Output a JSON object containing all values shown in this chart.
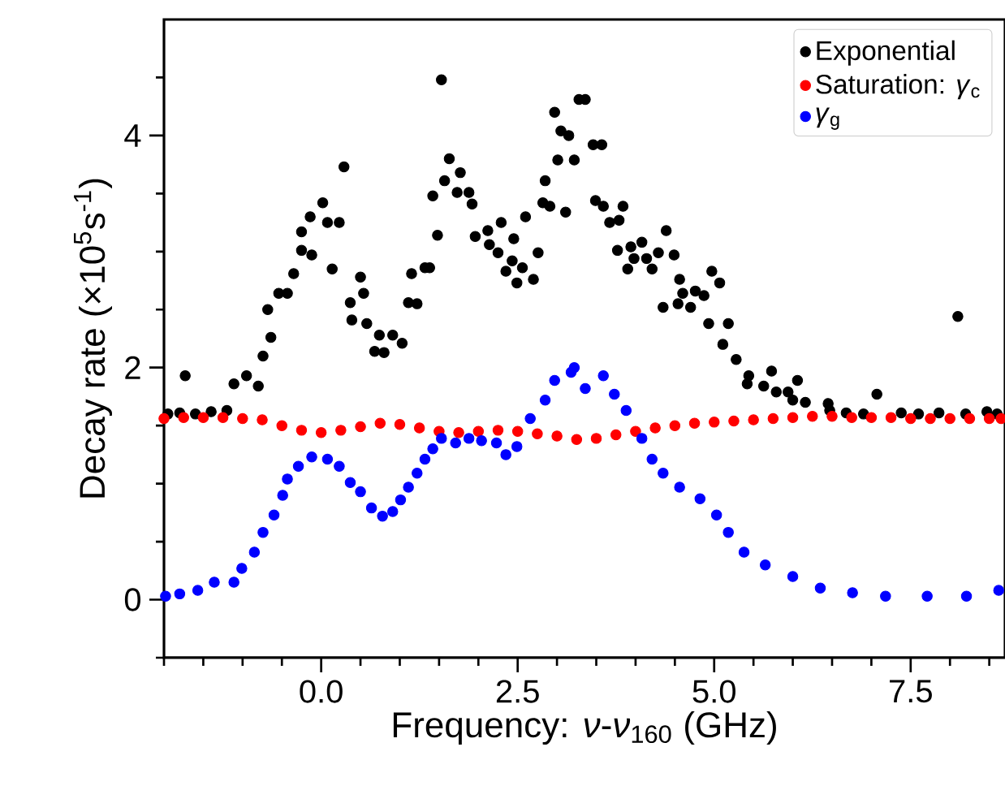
{
  "chart_data": {
    "type": "scatter",
    "xlabel": "Frequency:  *ν*-*ν*$_{160}$ (GHz)",
    "ylabel": "Decay rate (×10$^{5}$s$^{-1}$)",
    "xlim": [
      -2.0,
      8.7
    ],
    "ylim": [
      -0.5,
      5.0
    ],
    "xticks": [
      {
        "value": -2.0,
        "label": null
      },
      {
        "value": -1.5,
        "label": null
      },
      {
        "value": -1.0,
        "label": null
      },
      {
        "value": -0.5,
        "label": null
      },
      {
        "value": 0,
        "label": "0.0"
      },
      {
        "value": 0.5,
        "label": null
      },
      {
        "value": 1.0,
        "label": null
      },
      {
        "value": 1.5,
        "label": null
      },
      {
        "value": 2.0,
        "label": null
      },
      {
        "value": 2.5,
        "label": "2.5"
      },
      {
        "value": 3.0,
        "label": null
      },
      {
        "value": 3.5,
        "label": null
      },
      {
        "value": 4.0,
        "label": null
      },
      {
        "value": 4.5,
        "label": null
      },
      {
        "value": 5.0,
        "label": "5.0"
      },
      {
        "value": 5.5,
        "label": null
      },
      {
        "value": 6.0,
        "label": null
      },
      {
        "value": 6.5,
        "label": null
      },
      {
        "value": 7.0,
        "label": null
      },
      {
        "value": 7.5,
        "label": "7.5"
      },
      {
        "value": 8.0,
        "label": null
      },
      {
        "value": 8.5,
        "label": null
      }
    ],
    "yticks": [
      {
        "value": -0.5,
        "label": null
      },
      0,
      {
        "value": 0.5,
        "label": null
      },
      {
        "value": 1.0,
        "label": null
      },
      {
        "value": 1.5,
        "label": null
      },
      2,
      {
        "value": 2.5,
        "label": null
      },
      {
        "value": 3.0,
        "label": null
      },
      {
        "value": 3.5,
        "label": null
      },
      4,
      {
        "value": 4.5,
        "label": null
      }
    ],
    "legend": "top right",
    "marker": "circle",
    "grid": false,
    "series": [
      {
        "name": "Exponential",
        "color": "#000000",
        "x": [
          -1.95,
          -1.8,
          -1.73,
          -1.6,
          -1.4,
          -1.2,
          -1.11,
          -0.95,
          -0.8,
          -0.74,
          -0.68,
          -0.64,
          -0.54,
          -0.43,
          -0.35,
          -0.25,
          -0.25,
          -0.14,
          -0.12,
          0.02,
          0.08,
          0.14,
          0.23,
          0.29,
          0.37,
          0.39,
          0.5,
          0.54,
          0.58,
          0.68,
          0.74,
          0.8,
          0.91,
          1.03,
          1.11,
          1.15,
          1.22,
          1.32,
          1.38,
          1.42,
          1.48,
          1.53,
          1.57,
          1.63,
          1.73,
          1.77,
          1.88,
          1.92,
          1.96,
          2.12,
          2.14,
          2.25,
          2.29,
          2.35,
          2.43,
          2.45,
          2.49,
          2.56,
          2.6,
          2.7,
          2.76,
          2.82,
          2.85,
          2.91,
          2.97,
          3.01,
          3.05,
          3.11,
          3.15,
          3.22,
          3.28,
          3.36,
          3.46,
          3.49,
          3.57,
          3.59,
          3.67,
          3.77,
          3.79,
          3.84,
          3.9,
          3.94,
          3.98,
          4.08,
          4.14,
          4.21,
          4.29,
          4.35,
          4.39,
          4.49,
          4.54,
          4.56,
          4.6,
          4.7,
          4.76,
          4.87,
          4.93,
          4.97,
          5.07,
          5.11,
          5.18,
          5.28,
          5.42,
          5.44,
          5.63,
          5.73,
          5.79,
          5.94,
          6.0,
          6.06,
          6.16,
          6.45,
          6.47,
          6.68,
          6.9,
          7.07,
          7.38,
          7.6,
          7.86,
          8.1,
          8.2,
          8.47,
          8.6
        ],
        "values": [
          1.6,
          1.61,
          1.93,
          1.6,
          1.62,
          1.63,
          1.86,
          1.93,
          1.84,
          2.1,
          2.5,
          2.26,
          2.64,
          2.64,
          2.81,
          3.01,
          3.17,
          3.3,
          2.97,
          3.42,
          3.25,
          2.85,
          3.25,
          3.73,
          2.56,
          2.41,
          2.78,
          2.64,
          2.38,
          2.14,
          2.28,
          2.13,
          2.28,
          2.21,
          2.56,
          2.81,
          2.55,
          2.86,
          2.86,
          3.48,
          3.14,
          4.48,
          3.61,
          3.8,
          3.51,
          3.68,
          3.51,
          3.41,
          3.13,
          3.18,
          3.06,
          2.99,
          3.25,
          2.83,
          2.92,
          3.11,
          2.73,
          2.86,
          3.3,
          2.76,
          2.99,
          3.42,
          3.61,
          3.39,
          4.2,
          3.79,
          4.04,
          3.34,
          4.0,
          3.79,
          4.31,
          4.31,
          3.92,
          3.44,
          3.92,
          3.39,
          3.25,
          3.01,
          3.27,
          3.39,
          2.85,
          3.04,
          2.94,
          3.08,
          2.94,
          2.85,
          2.99,
          2.52,
          3.18,
          2.97,
          2.55,
          2.76,
          2.64,
          2.52,
          2.66,
          2.62,
          2.38,
          2.83,
          2.73,
          2.2,
          2.38,
          2.07,
          1.86,
          1.93,
          1.84,
          1.97,
          1.79,
          1.79,
          1.72,
          1.89,
          1.7,
          1.69,
          1.63,
          1.61,
          1.6,
          1.77,
          1.61,
          1.6,
          1.61,
          2.44,
          1.6,
          1.62,
          1.6
        ]
      },
      {
        "name": "Saturation: *γ*$_{c}$",
        "color": "#ff0000",
        "x": [
          -2.0,
          -1.75,
          -1.5,
          -1.25,
          -1.0,
          -0.75,
          -0.5,
          -0.25,
          0.0,
          0.25,
          0.5,
          0.75,
          1.0,
          1.25,
          1.5,
          1.75,
          2.0,
          2.25,
          2.5,
          2.75,
          3.0,
          3.25,
          3.5,
          3.75,
          4.0,
          4.25,
          4.5,
          4.75,
          5.0,
          5.25,
          5.5,
          5.75,
          6.0,
          6.25,
          6.5,
          6.75,
          7.0,
          7.25,
          7.5,
          7.75,
          8.0,
          8.25,
          8.5,
          8.65
        ],
        "values": [
          1.56,
          1.57,
          1.57,
          1.57,
          1.56,
          1.55,
          1.5,
          1.46,
          1.44,
          1.46,
          1.49,
          1.52,
          1.51,
          1.48,
          1.45,
          1.44,
          1.45,
          1.46,
          1.45,
          1.43,
          1.41,
          1.38,
          1.39,
          1.42,
          1.45,
          1.48,
          1.5,
          1.52,
          1.53,
          1.54,
          1.55,
          1.56,
          1.57,
          1.58,
          1.58,
          1.57,
          1.57,
          1.57,
          1.56,
          1.56,
          1.56,
          1.56,
          1.56,
          1.56
        ]
      },
      {
        "name": "*γ*$_{g}$",
        "color": "#0000ff",
        "x": [
          -1.98,
          -1.8,
          -1.57,
          -1.36,
          -1.11,
          -1.01,
          -0.85,
          -0.74,
          -0.6,
          -0.49,
          -0.43,
          -0.29,
          -0.12,
          0.08,
          0.23,
          0.37,
          0.5,
          0.64,
          0.78,
          0.91,
          1.01,
          1.11,
          1.22,
          1.32,
          1.42,
          1.53,
          1.71,
          1.88,
          2.04,
          2.23,
          2.35,
          2.49,
          2.66,
          2.85,
          2.97,
          3.18,
          3.22,
          3.36,
          3.59,
          3.73,
          3.88,
          4.08,
          4.21,
          4.35,
          4.56,
          4.82,
          5.03,
          5.18,
          5.38,
          5.65,
          6.0,
          6.35,
          6.76,
          7.18,
          7.71,
          8.21,
          8.62
        ],
        "values": [
          0.03,
          0.05,
          0.08,
          0.15,
          0.15,
          0.27,
          0.41,
          0.58,
          0.73,
          0.9,
          1.04,
          1.15,
          1.23,
          1.21,
          1.15,
          1.01,
          0.93,
          0.79,
          0.72,
          0.76,
          0.86,
          0.97,
          1.09,
          1.21,
          1.3,
          1.39,
          1.35,
          1.39,
          1.37,
          1.35,
          1.25,
          1.32,
          1.56,
          1.72,
          1.89,
          1.96,
          2.0,
          1.82,
          1.93,
          1.77,
          1.63,
          1.39,
          1.21,
          1.09,
          0.97,
          0.87,
          0.73,
          0.58,
          0.41,
          0.3,
          0.2,
          0.1,
          0.06,
          0.03,
          0.03,
          0.03,
          0.08
        ]
      }
    ]
  }
}
